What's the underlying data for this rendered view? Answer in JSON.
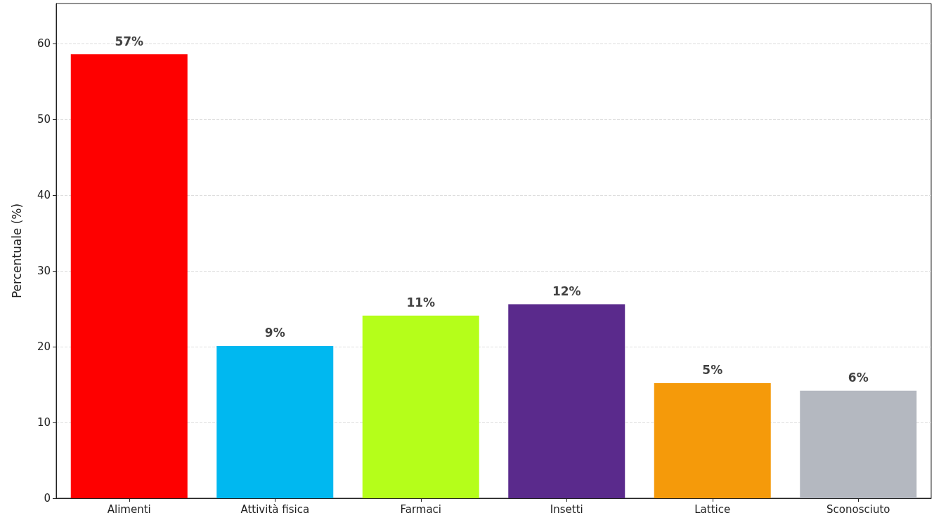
{
  "chart_data": {
    "type": "bar",
    "ylabel": "Percentuale (%)",
    "categories": [
      "Alimenti",
      "Attività fisica",
      "Farmaci",
      "Insetti",
      "Lattice",
      "Sconosciuto"
    ],
    "values": [
      58.6,
      20.1,
      24.1,
      25.6,
      15.2,
      14.2
    ],
    "colors": [
      "#fe0000",
      "#00b8f0",
      "#b5fe1a",
      "#5a2a8c",
      "#f59a0a",
      "#b4b8c0"
    ],
    "annotations": [
      {
        "text": "57%",
        "x": "Alimenti",
        "y": 58.6
      },
      {
        "text": "9%",
        "x": "Attività fisica",
        "y": 20.1
      },
      {
        "text": "11%",
        "x": "Farmaci",
        "y": 24.1
      },
      {
        "text": "12%",
        "x": "Insetti",
        "y": 25.6
      },
      {
        "text": "5%",
        "x": "Lattice",
        "y": 15.2
      },
      {
        "text": "6%",
        "x": "Sconosciuto",
        "y": 14.2
      }
    ],
    "ylim": [
      0,
      65.3
    ],
    "yticks": [
      0,
      10,
      20,
      30,
      40,
      50,
      60
    ],
    "grid": "y"
  }
}
